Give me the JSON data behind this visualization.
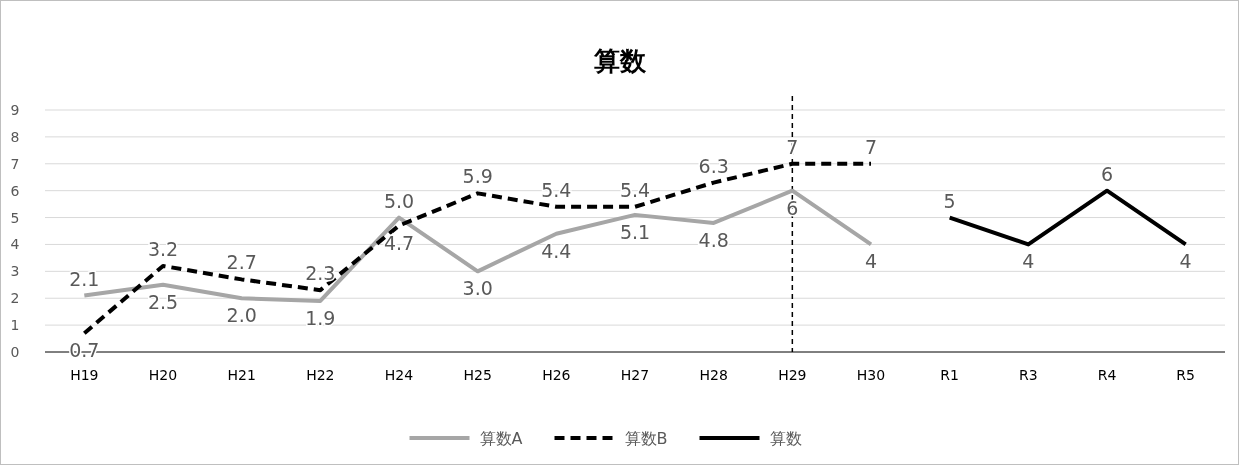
{
  "chart_data": {
    "type": "line",
    "title": "算数",
    "categories": [
      "H19",
      "H20",
      "H21",
      "H22",
      "H24",
      "H25",
      "H26",
      "H27",
      "H28",
      "H29",
      "H30",
      "R1",
      "R3",
      "R4",
      "R5"
    ],
    "series": [
      {
        "name": "算数A",
        "color": "#a6a6a6",
        "line_style": "solid",
        "values": [
          2.1,
          2.5,
          2.0,
          1.9,
          5.0,
          3.0,
          4.4,
          5.1,
          4.8,
          6,
          4,
          null,
          null,
          null,
          null
        ],
        "value_labels": [
          "2.1",
          "2.5",
          "2.0",
          "1.9",
          "5.0",
          "3.0",
          "4.4",
          "5.1",
          "4.8",
          "6",
          "4",
          null,
          null,
          null,
          null
        ]
      },
      {
        "name": "算数B",
        "color": "#000000",
        "line_style": "dashed",
        "values": [
          0.7,
          3.2,
          2.7,
          2.3,
          4.7,
          5.9,
          5.4,
          5.4,
          6.3,
          7,
          7,
          null,
          null,
          null,
          null
        ],
        "value_labels": [
          "0.7",
          "3.2",
          "2.7",
          "2.3",
          "4.7",
          "5.9",
          "5.4",
          "5.4",
          "6.3",
          "7",
          "7",
          null,
          null,
          null,
          null
        ]
      },
      {
        "name": "算数",
        "color": "#000000",
        "line_style": "solid",
        "values": [
          null,
          null,
          null,
          null,
          null,
          null,
          null,
          null,
          null,
          null,
          null,
          5,
          4,
          6,
          4
        ],
        "value_labels": [
          null,
          null,
          null,
          null,
          null,
          null,
          null,
          null,
          null,
          null,
          null,
          "5",
          "4",
          "6",
          "4"
        ]
      }
    ],
    "ylim": [
      0,
      9
    ],
    "yticks": [
      0,
      1,
      2,
      3,
      4,
      5,
      6,
      7,
      8,
      9
    ],
    "grid": "y",
    "legend": "bottom",
    "ref_lines": [
      {
        "axis": "x",
        "value": "H29",
        "color": "#000000",
        "line_style": "dashed"
      }
    ]
  }
}
